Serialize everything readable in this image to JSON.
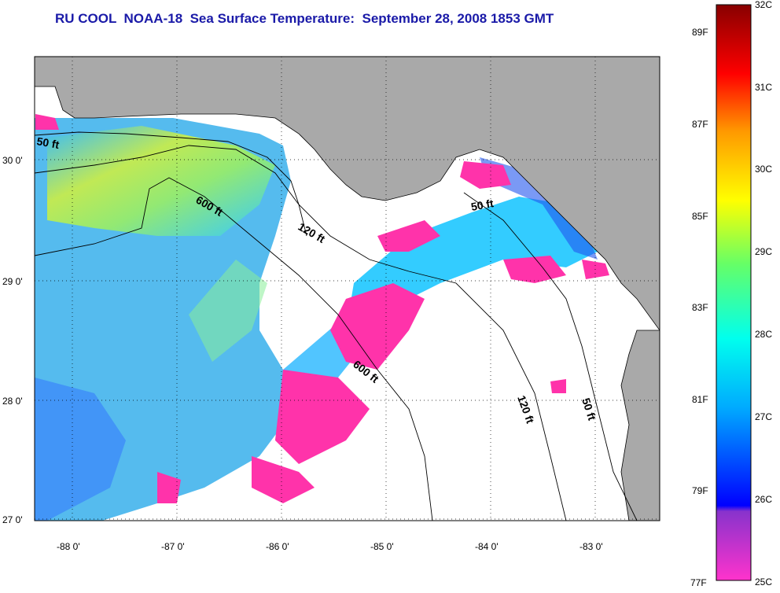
{
  "title": "RU COOL  NOAA-18  Sea Surface Temperature:  September 28, 2008 1853 GMT",
  "map": {
    "lon_ticks": [
      "-88 0'",
      "-87 0'",
      "-86 0'",
      "-85 0'",
      "-84 0'",
      "-83 0'"
    ],
    "lat_ticks": [
      "30 0'",
      "29 0'",
      "28 0'",
      "27 0'"
    ],
    "depth_labels": [
      "50 ft",
      "600 ft",
      "120 ft",
      "50 ft",
      "600 ft",
      "120 ft",
      "50 ft"
    ],
    "colors": {
      "land": "#a9a9a9",
      "cloud": "#ffffff"
    }
  },
  "colorbar": {
    "fahrenheit": [
      "89F",
      "87F",
      "85F",
      "83F",
      "81F",
      "79F",
      "77F"
    ],
    "celsius": [
      "32C",
      "31C",
      "30C",
      "29C",
      "28C",
      "27C",
      "26C",
      "25C"
    ]
  }
}
